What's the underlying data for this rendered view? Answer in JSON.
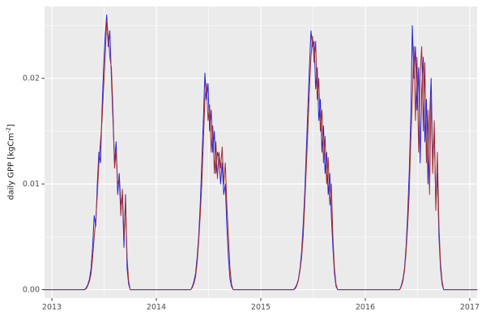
{
  "figure": {
    "background": "#FFFFFF",
    "panel_background": "#EBEBEB",
    "grid_major_color": "#FFFFFF",
    "grid_minor_color": "#FFFFFF",
    "tick_color": "#333333",
    "tick_label_color": "#4D4D4D"
  },
  "chart_data": {
    "type": "line",
    "title": "",
    "xlabel": "",
    "ylabel": "daily GPP [kgCm-2]",
    "ylabel_parts": {
      "base": "daily GPP [kgCm",
      "sup": "-2",
      "end": "]"
    },
    "xlim": [
      2012.93,
      2017.07
    ],
    "ylim": [
      -0.0008,
      0.0268
    ],
    "grid": true,
    "legend": null,
    "x_ticks": [
      2013,
      2014,
      2015,
      2016,
      2017
    ],
    "x_tick_labels": [
      "2013",
      "2014",
      "2015",
      "2016",
      "2017"
    ],
    "x_minor_ticks": [
      2013.5,
      2014.5,
      2015.5,
      2016.5
    ],
    "y_ticks": [
      0,
      0.01,
      0.02
    ],
    "y_tick_labels": [
      "0.00",
      "0.01",
      "0.02"
    ],
    "y_minor_ticks": [
      0.005,
      0.015,
      0.025
    ],
    "x": [
      2012.93,
      2013,
      2013.1,
      2013.2,
      2013.3,
      2013.315,
      2013.33,
      2013.345,
      2013.36,
      2013.375,
      2013.39,
      2013.405,
      2013.42,
      2013.435,
      2013.45,
      2013.465,
      2013.48,
      2013.495,
      2013.51,
      2013.525,
      2013.54,
      2013.555,
      2013.57,
      2013.585,
      2013.6,
      2013.615,
      2013.63,
      2013.645,
      2013.66,
      2013.675,
      2013.69,
      2013.705,
      2013.72,
      2013.735,
      2013.75,
      2013.78,
      2013.88,
      2014,
      2014.1,
      2014.2,
      2014.3,
      2014.315,
      2014.33,
      2014.345,
      2014.36,
      2014.375,
      2014.39,
      2014.405,
      2014.42,
      2014.435,
      2014.45,
      2014.465,
      2014.48,
      2014.495,
      2014.51,
      2014.525,
      2014.54,
      2014.555,
      2014.57,
      2014.585,
      2014.6,
      2014.615,
      2014.63,
      2014.645,
      2014.66,
      2014.675,
      2014.69,
      2014.705,
      2014.72,
      2014.735,
      2014.75,
      2014.78,
      2014.88,
      2015,
      2015.1,
      2015.2,
      2015.3,
      2015.315,
      2015.33,
      2015.345,
      2015.36,
      2015.375,
      2015.39,
      2015.405,
      2015.42,
      2015.435,
      2015.45,
      2015.465,
      2015.48,
      2015.495,
      2015.51,
      2015.525,
      2015.54,
      2015.555,
      2015.57,
      2015.585,
      2015.6,
      2015.615,
      2015.63,
      2015.645,
      2015.66,
      2015.675,
      2015.69,
      2015.705,
      2015.72,
      2015.735,
      2015.75,
      2015.78,
      2015.88,
      2016,
      2016.1,
      2016.2,
      2016.3,
      2016.315,
      2016.33,
      2016.345,
      2016.36,
      2016.375,
      2016.39,
      2016.405,
      2016.42,
      2016.435,
      2016.45,
      2016.465,
      2016.48,
      2016.495,
      2016.51,
      2016.525,
      2016.54,
      2016.555,
      2016.57,
      2016.585,
      2016.6,
      2016.615,
      2016.63,
      2016.645,
      2016.66,
      2016.675,
      2016.69,
      2016.705,
      2016.72,
      2016.735,
      2016.75,
      2016.78,
      2016.88,
      2017,
      2017.07
    ],
    "series": [
      {
        "name": "blue",
        "color": "#2222E0",
        "values": [
          0,
          0,
          0,
          0,
          0,
          0,
          0.0002,
          0.0005,
          0.001,
          0.002,
          0.004,
          0.007,
          0.006,
          0.01,
          0.013,
          0.012,
          0.017,
          0.021,
          0.024,
          0.026,
          0.023,
          0.0245,
          0.02,
          0.016,
          0.012,
          0.014,
          0.009,
          0.011,
          0.008,
          0.009,
          0.004,
          0.009,
          0.002,
          0.0005,
          0,
          0,
          0,
          0,
          0,
          0,
          0,
          0,
          0,
          0.0003,
          0.0008,
          0.0015,
          0.003,
          0.005,
          0.008,
          0.012,
          0.016,
          0.0205,
          0.018,
          0.0195,
          0.015,
          0.017,
          0.013,
          0.015,
          0.011,
          0.013,
          0.0125,
          0.01,
          0.012,
          0.009,
          0.01,
          0.006,
          0.003,
          0.001,
          0.0003,
          0,
          0,
          0,
          0,
          0,
          0,
          0,
          0,
          0,
          0.0002,
          0.0005,
          0.001,
          0.002,
          0.0035,
          0.006,
          0.009,
          0.013,
          0.017,
          0.021,
          0.0245,
          0.023,
          0.0235,
          0.019,
          0.021,
          0.016,
          0.018,
          0.013,
          0.0155,
          0.011,
          0.013,
          0.009,
          0.011,
          0.007,
          0.004,
          0.0015,
          0.0003,
          0,
          0,
          0,
          0,
          0,
          0,
          0,
          0,
          0,
          0,
          0.0004,
          0.001,
          0.002,
          0.004,
          0.007,
          0.011,
          0.016,
          0.025,
          0.02,
          0.023,
          0.017,
          0.021,
          0.012,
          0.019,
          0.022,
          0.014,
          0.018,
          0.01,
          0.016,
          0.02,
          0.012,
          0.015,
          0.008,
          0.011,
          0.005,
          0.002,
          0.0005,
          0,
          0,
          0,
          0,
          0
        ]
      },
      {
        "name": "red",
        "color": "#A32C2C",
        "values": [
          0,
          0,
          0,
          0,
          0,
          0,
          0.0001,
          0.0004,
          0.0008,
          0.0015,
          0.003,
          0.005,
          0.0065,
          0.009,
          0.012,
          0.014,
          0.016,
          0.019,
          0.022,
          0.0255,
          0.024,
          0.022,
          0.021,
          0.017,
          0.0115,
          0.013,
          0.01,
          0.0105,
          0.007,
          0.0095,
          0.005,
          0.0085,
          0.003,
          0.0008,
          0,
          0,
          0,
          0,
          0,
          0,
          0,
          0,
          0,
          0.0002,
          0.0006,
          0.0012,
          0.0025,
          0.0045,
          0.007,
          0.01,
          0.014,
          0.018,
          0.0195,
          0.016,
          0.0175,
          0.013,
          0.0155,
          0.011,
          0.014,
          0.0105,
          0.013,
          0.0115,
          0.0135,
          0.01,
          0.012,
          0.008,
          0.005,
          0.002,
          0.0005,
          0,
          0,
          0,
          0,
          0,
          0,
          0,
          0,
          0,
          0.0001,
          0.0004,
          0.0009,
          0.0018,
          0.003,
          0.005,
          0.008,
          0.0115,
          0.015,
          0.019,
          0.022,
          0.024,
          0.0215,
          0.0235,
          0.018,
          0.02,
          0.015,
          0.017,
          0.012,
          0.0145,
          0.01,
          0.0125,
          0.008,
          0.01,
          0.005,
          0.002,
          0.0005,
          0,
          0,
          0,
          0,
          0,
          0,
          0,
          0,
          0,
          0,
          0.0003,
          0.0008,
          0.0018,
          0.0035,
          0.006,
          0.009,
          0.014,
          0.018,
          0.023,
          0.016,
          0.022,
          0.013,
          0.0205,
          0.023,
          0.015,
          0.0215,
          0.012,
          0.017,
          0.009,
          0.0185,
          0.011,
          0.016,
          0.0075,
          0.013,
          0.006,
          0.0025,
          0.0008,
          0,
          0,
          0,
          0,
          0
        ]
      }
    ]
  }
}
